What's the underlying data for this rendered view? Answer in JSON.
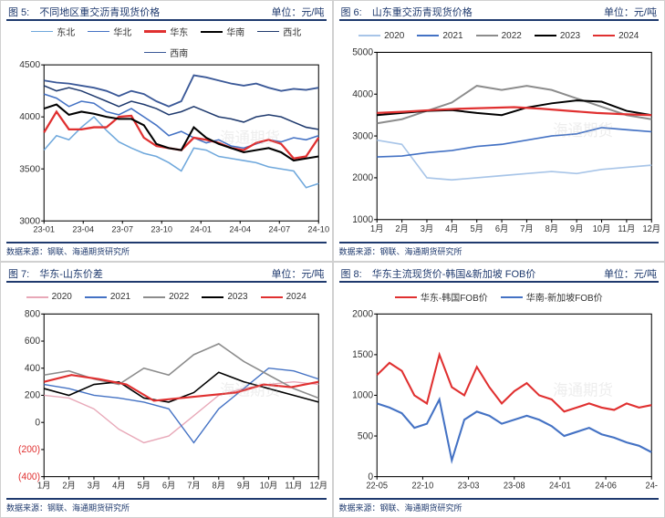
{
  "footer_text": "数据来源：钢联、海通期货研究所",
  "panels": [
    {
      "id": "p5",
      "title_left": "图 5:　不同地区重交沥青现货价格",
      "title_right": "单位：元/吨",
      "type": "line",
      "background_color": "#ffffff",
      "axis_color": "#000000",
      "grid_color": "#e0e0e0",
      "tick_fontsize": 10,
      "ylim": [
        3000,
        4500
      ],
      "ytick_step": 500,
      "x_labels": [
        "23-01",
        "23-04",
        "23-07",
        "23-10",
        "24-01",
        "24-04",
        "24-07",
        "24-10"
      ],
      "x_positions": [
        0,
        1,
        2,
        3,
        4,
        5,
        6,
        7
      ],
      "legend_cols": 3,
      "series": [
        {
          "name": "东北",
          "color": "#6fa8dc",
          "width": 1.5,
          "data": [
            3680,
            3820,
            3780,
            3900,
            4000,
            3870,
            3760,
            3700,
            3650,
            3620,
            3560,
            3480,
            3700,
            3680,
            3620,
            3600,
            3580,
            3560,
            3520,
            3500,
            3480,
            3320,
            3360
          ]
        },
        {
          "name": "华北",
          "color": "#4472c4",
          "width": 1.5,
          "data": [
            4220,
            4180,
            4100,
            4150,
            4130,
            4050,
            4020,
            4080,
            4000,
            3920,
            3820,
            3860,
            3800,
            3750,
            3780,
            3720,
            3700,
            3740,
            3780,
            3760,
            3800,
            3780,
            3820
          ]
        },
        {
          "name": "华东",
          "color": "#e03030",
          "width": 2.2,
          "data": [
            3850,
            4050,
            3880,
            3880,
            3900,
            3900,
            4000,
            4010,
            3800,
            3720,
            3700,
            3680,
            3800,
            3780,
            3750,
            3700,
            3680,
            3750,
            3780,
            3740,
            3600,
            3620,
            3800
          ]
        },
        {
          "name": "华南",
          "color": "#000000",
          "width": 2.0,
          "data": [
            4080,
            4120,
            4020,
            4050,
            4030,
            4000,
            3980,
            3980,
            3920,
            3740,
            3700,
            3680,
            3900,
            3800,
            3740,
            3700,
            3660,
            3680,
            3700,
            3660,
            3580,
            3600,
            3620
          ]
        },
        {
          "name": "西北",
          "color": "#1f3a6e",
          "width": 1.5,
          "data": [
            4300,
            4250,
            4280,
            4250,
            4200,
            4150,
            4100,
            4150,
            4120,
            4080,
            4020,
            4050,
            4100,
            4050,
            4000,
            3980,
            3950,
            4000,
            4020,
            4000,
            3950,
            3900,
            3880
          ]
        },
        {
          "name": "西南",
          "color": "#3b5998",
          "width": 1.8,
          "data": [
            4350,
            4330,
            4320,
            4300,
            4280,
            4250,
            4200,
            4250,
            4220,
            4150,
            4100,
            4150,
            4400,
            4380,
            4350,
            4320,
            4300,
            4320,
            4280,
            4250,
            4270,
            4260,
            4280
          ]
        }
      ]
    },
    {
      "id": "p6",
      "title_left": "图 6:　山东重交沥青现货价格",
      "title_right": "单位：元/吨",
      "type": "line",
      "background_color": "#ffffff",
      "axis_color": "#000000",
      "grid_color": "#e0e0e0",
      "tick_fontsize": 10,
      "ylim": [
        1000,
        5000
      ],
      "ytick_step": 1000,
      "x_labels": [
        "1月",
        "2月",
        "3月",
        "4月",
        "5月",
        "6月",
        "7月",
        "8月",
        "9月",
        "10月",
        "11月",
        "12月"
      ],
      "x_positions": [
        0,
        1,
        2,
        3,
        4,
        5,
        6,
        7,
        8,
        9,
        10,
        11
      ],
      "legend_cols": 3,
      "series": [
        {
          "name": "2020",
          "color": "#a8c5e8",
          "width": 1.5,
          "data": [
            2900,
            2800,
            2000,
            1950,
            2000,
            2050,
            2100,
            2150,
            2100,
            2200,
            2250,
            2300
          ]
        },
        {
          "name": "2021",
          "color": "#4472c4",
          "width": 1.5,
          "data": [
            2500,
            2520,
            2600,
            2650,
            2750,
            2800,
            2900,
            3000,
            3050,
            3200,
            3150,
            3100
          ]
        },
        {
          "name": "2022",
          "color": "#8c8c8c",
          "width": 1.8,
          "data": [
            3300,
            3400,
            3600,
            3800,
            4200,
            4100,
            4200,
            4100,
            3900,
            3700,
            3500,
            3400
          ]
        },
        {
          "name": "2023",
          "color": "#000000",
          "width": 1.8,
          "data": [
            3500,
            3550,
            3600,
            3620,
            3550,
            3500,
            3680,
            3780,
            3850,
            3820,
            3600,
            3500
          ]
        },
        {
          "name": "2024",
          "color": "#e03030",
          "width": 2.0,
          "data": [
            3550,
            3580,
            3620,
            3650,
            3670,
            3690,
            3650,
            3600,
            3550,
            3520,
            3500
          ]
        }
      ]
    },
    {
      "id": "p7",
      "title_left": "图 7:　华东-山东价差",
      "title_right": "单位：元/吨",
      "type": "line",
      "background_color": "#ffffff",
      "axis_color": "#000000",
      "grid_color": "#e0e0e0",
      "tick_fontsize": 10,
      "ylim": [
        -400,
        800
      ],
      "ytick_step": 200,
      "x_labels": [
        "1月",
        "2月",
        "3月",
        "4月",
        "5月",
        "6月",
        "7月",
        "8月",
        "9月",
        "10月",
        "11月",
        "12月"
      ],
      "x_positions": [
        0,
        1,
        2,
        3,
        4,
        5,
        6,
        7,
        8,
        9,
        10,
        11
      ],
      "legend_cols": 3,
      "neg_ticks": true,
      "series": [
        {
          "name": "2020",
          "color": "#e8a8b8",
          "width": 1.3,
          "data": [
            200,
            180,
            100,
            -50,
            -150,
            -100,
            50,
            200,
            250,
            280,
            300,
            280
          ]
        },
        {
          "name": "2021",
          "color": "#4472c4",
          "width": 1.3,
          "data": [
            280,
            250,
            200,
            180,
            150,
            100,
            -150,
            100,
            250,
            400,
            380,
            320
          ]
        },
        {
          "name": "2022",
          "color": "#8c8c8c",
          "width": 1.5,
          "data": [
            350,
            380,
            320,
            280,
            400,
            350,
            500,
            580,
            450,
            350,
            250,
            180
          ]
        },
        {
          "name": "2023",
          "color": "#000000",
          "width": 1.5,
          "data": [
            250,
            200,
            280,
            300,
            180,
            150,
            220,
            370,
            300,
            250,
            200,
            150
          ]
        },
        {
          "name": "2024",
          "color": "#e03030",
          "width": 2.0,
          "data": [
            300,
            350,
            320,
            280,
            160,
            180,
            200,
            220,
            280,
            260,
            300
          ]
        }
      ]
    },
    {
      "id": "p8",
      "title_left": "图 8:　华东主流现货价-韩国&新加坡 FOB价",
      "title_right": "单位：元/吨",
      "type": "line",
      "background_color": "#ffffff",
      "axis_color": "#000000",
      "grid_color": "#e0e0e0",
      "tick_fontsize": 10,
      "ylim": [
        0,
        2000
      ],
      "ytick_step": 500,
      "x_labels": [
        "22-05",
        "22-10",
        "23-03",
        "23-08",
        "24-01",
        "24-06",
        "24-"
      ],
      "x_positions": [
        0,
        1,
        2,
        3,
        4,
        5,
        6
      ],
      "legend_cols": 1,
      "series": [
        {
          "name": "华东-韩国FOB价",
          "color": "#e03030",
          "width": 2.0,
          "data": [
            1250,
            1400,
            1300,
            1000,
            900,
            1500,
            1100,
            1000,
            1350,
            1100,
            900,
            1050,
            1150,
            1000,
            950,
            800,
            850,
            900,
            850,
            820,
            900,
            850,
            880
          ]
        },
        {
          "name": "华南-新加坡FOB价",
          "color": "#4472c4",
          "width": 2.0,
          "data": [
            900,
            850,
            780,
            600,
            650,
            950,
            200,
            700,
            800,
            750,
            650,
            700,
            750,
            700,
            620,
            500,
            550,
            600,
            520,
            480,
            420,
            380,
            300
          ]
        }
      ]
    }
  ]
}
